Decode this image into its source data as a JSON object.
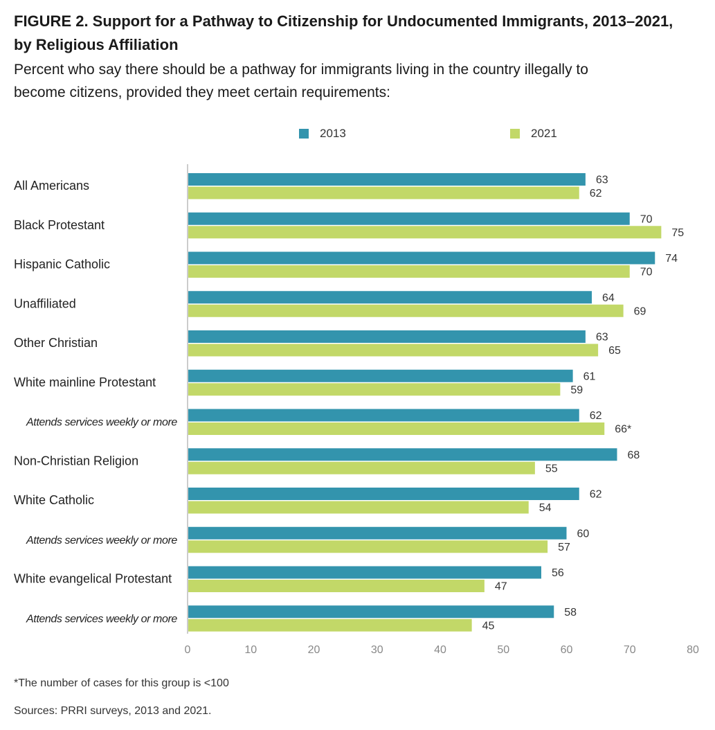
{
  "title_line1": "FIGURE 2.  Support for a Pathway to Citizenship for Undocumented Immigrants, 2013–2021,",
  "title_line2": "by Religious Affiliation",
  "subtitle_line1": "Percent who say there should be a pathway for immigrants living in the country illegally to",
  "subtitle_line2": "become citizens, provided they meet certain requirements:",
  "footnote": "*The number of cases for this group is <100",
  "sources": "Sources: PRRI surveys, 2013 and 2021.",
  "colors": {
    "y2013": "#3394ad",
    "y2021": "#c2d868",
    "axis": "#cccccc",
    "tick_text": "#888888"
  },
  "chart_data": {
    "type": "bar",
    "orientation": "horizontal",
    "categories": [
      "All Americans",
      "Black Protestant",
      "Hispanic Catholic",
      "Unaffiliated",
      "Other Christian",
      "White mainline Protestant",
      "Attends services weekly or more",
      "Non-Christian Religion",
      "White Catholic",
      "Attends services weekly or more",
      "White evangelical Protestant",
      "Attends services weekly or more"
    ],
    "italic_categories": [
      6,
      9,
      11
    ],
    "series": [
      {
        "name": "2013",
        "values": [
          63,
          70,
          74,
          64,
          63,
          61,
          62,
          68,
          62,
          60,
          56,
          58
        ],
        "labels": [
          "63",
          "70",
          "74",
          "64",
          "63",
          "61",
          "62",
          "68",
          "62",
          "60",
          "56",
          "58"
        ]
      },
      {
        "name": "2021",
        "values": [
          62,
          75,
          70,
          69,
          65,
          59,
          66,
          55,
          54,
          57,
          47,
          45
        ],
        "labels": [
          "62",
          "75",
          "70",
          "69",
          "65",
          "59",
          "66*",
          "55",
          "54",
          "57",
          "47",
          "45"
        ]
      }
    ],
    "xlim": [
      0,
      80
    ],
    "xticks": [
      0,
      10,
      20,
      30,
      40,
      50,
      60,
      70,
      80
    ],
    "legend_position": "top",
    "grid": false
  }
}
